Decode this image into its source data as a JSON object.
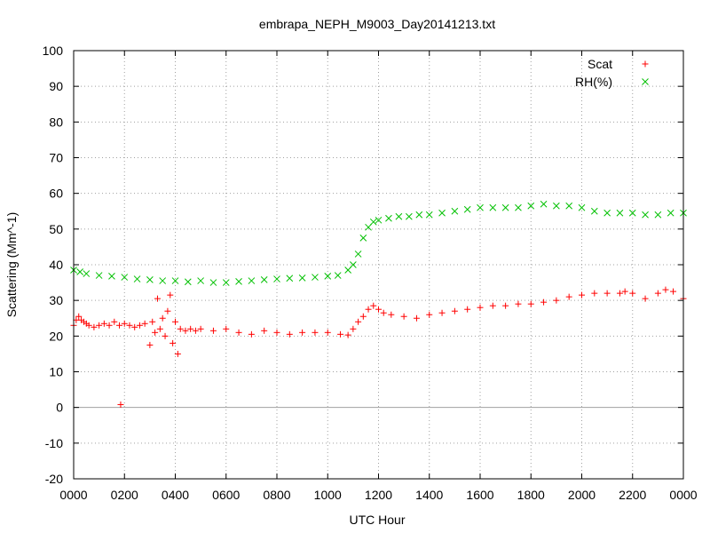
{
  "chart_data": {
    "type": "scatter",
    "title": "embrapa_NEPH_M9003_Day20141213.txt",
    "xlabel": "UTC Hour",
    "ylabel": "Scattering (Mm^-1)",
    "xlim": [
      0,
      24
    ],
    "ylim": [
      -20,
      100
    ],
    "y_ticks": [
      -20,
      -10,
      0,
      10,
      20,
      30,
      40,
      50,
      60,
      70,
      80,
      90,
      100
    ],
    "x_ticks": [
      0,
      2,
      4,
      6,
      8,
      10,
      12,
      14,
      16,
      18,
      20,
      22,
      24
    ],
    "x_tick_labels": [
      "0000",
      "0200",
      "0400",
      "0600",
      "0800",
      "1000",
      "1200",
      "1400",
      "1600",
      "1800",
      "2000",
      "2200",
      "0000"
    ],
    "grid": true,
    "zero_line": true,
    "legend_position": "top-right",
    "series": [
      {
        "name": "Scat",
        "marker": "+",
        "color": "#ff0000",
        "x": [
          0.0,
          0.1,
          0.2,
          0.3,
          0.4,
          0.5,
          0.6,
          0.8,
          1.0,
          1.2,
          1.4,
          1.6,
          1.8,
          1.85,
          2.0,
          2.2,
          2.4,
          2.6,
          2.8,
          3.0,
          3.1,
          3.2,
          3.3,
          3.4,
          3.5,
          3.6,
          3.7,
          3.8,
          3.9,
          4.0,
          4.1,
          4.2,
          4.4,
          4.6,
          4.8,
          5.0,
          5.5,
          6.0,
          6.5,
          7.0,
          7.5,
          8.0,
          8.5,
          9.0,
          9.5,
          10.0,
          10.5,
          10.8,
          11.0,
          11.2,
          11.4,
          11.6,
          11.8,
          12.0,
          12.2,
          12.5,
          13.0,
          13.5,
          14.0,
          14.5,
          15.0,
          15.5,
          16.0,
          16.5,
          17.0,
          17.5,
          18.0,
          18.5,
          19.0,
          19.5,
          20.0,
          20.5,
          21.0,
          21.5,
          21.7,
          22.0,
          22.5,
          23.0,
          23.3,
          23.6,
          24.0
        ],
        "y": [
          23.0,
          24.5,
          25.5,
          24.5,
          24.0,
          23.5,
          23.0,
          22.5,
          23.0,
          23.5,
          23.0,
          24.0,
          23.0,
          0.8,
          23.5,
          23.0,
          22.5,
          23.0,
          23.5,
          17.5,
          24.0,
          21.0,
          30.5,
          22.0,
          25.0,
          20.0,
          27.0,
          31.5,
          18.0,
          24.0,
          15.0,
          22.0,
          21.5,
          22.0,
          21.5,
          22.0,
          21.5,
          22.0,
          21.0,
          20.5,
          21.5,
          21.0,
          20.5,
          21.0,
          21.0,
          21.0,
          20.5,
          20.3,
          22.0,
          24.0,
          25.5,
          27.5,
          28.5,
          27.5,
          26.5,
          26.0,
          25.5,
          25.0,
          26.0,
          26.5,
          27.0,
          27.5,
          28.0,
          28.5,
          28.5,
          29.0,
          29.0,
          29.5,
          30.0,
          31.0,
          31.5,
          32.0,
          32.0,
          32.0,
          32.5,
          32.0,
          30.5,
          32.0,
          33.0,
          32.5,
          30.5
        ]
      },
      {
        "name": "RH(%)",
        "marker": "x",
        "color": "#00c000",
        "x": [
          0.0,
          0.25,
          0.5,
          1.0,
          1.5,
          2.0,
          2.5,
          3.0,
          3.5,
          4.0,
          4.5,
          5.0,
          5.5,
          6.0,
          6.5,
          7.0,
          7.5,
          8.0,
          8.5,
          9.0,
          9.5,
          10.0,
          10.4,
          10.8,
          11.0,
          11.2,
          11.4,
          11.6,
          11.8,
          12.0,
          12.4,
          12.8,
          13.2,
          13.6,
          14.0,
          14.5,
          15.0,
          15.5,
          16.0,
          16.5,
          17.0,
          17.5,
          18.0,
          18.5,
          19.0,
          19.5,
          20.0,
          20.5,
          21.0,
          21.5,
          22.0,
          22.5,
          23.0,
          23.5,
          24.0
        ],
        "y": [
          38.5,
          38.0,
          37.5,
          37.0,
          36.8,
          36.5,
          36.0,
          35.8,
          35.5,
          35.5,
          35.2,
          35.5,
          35.0,
          35.0,
          35.3,
          35.5,
          35.8,
          36.0,
          36.2,
          36.3,
          36.5,
          36.8,
          37.0,
          38.5,
          40.0,
          43.0,
          47.5,
          50.5,
          52.0,
          52.5,
          53.0,
          53.5,
          53.5,
          54.0,
          54.0,
          54.5,
          55.0,
          55.5,
          56.0,
          56.0,
          56.0,
          56.0,
          56.5,
          57.0,
          56.5,
          56.5,
          56.0,
          55.0,
          54.5,
          54.5,
          54.5,
          54.0,
          54.0,
          54.5,
          54.5
        ]
      }
    ]
  }
}
